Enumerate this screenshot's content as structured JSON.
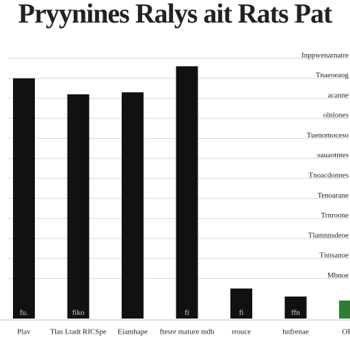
{
  "chart_data": {
    "type": "bar",
    "title": "Pryynines Ralys ait Rats Pat",
    "categories": [
      "Plav",
      "Tlas Ltadt RICSpe",
      "Eiamhape",
      "ftesre mature mdb",
      "rrouce",
      "hnfrenae",
      "ORD"
    ],
    "values": [
      12.0,
      11.2,
      11.3,
      12.6,
      1.5,
      1.1,
      0.9
    ],
    "colors": [
      "#111111",
      "#111111",
      "#111111",
      "#111111",
      "#111111",
      "#111111",
      "#2e7d32"
    ],
    "bar_labels": [
      "fu.",
      "fiko",
      "",
      "fi",
      "fi",
      "ffn",
      ""
    ],
    "ylim": [
      0,
      14
    ],
    "yticks": [
      {
        "value": 13,
        "label": "Inppwenarnatre"
      },
      {
        "value": 12,
        "label": "Tnaeoeaog"
      },
      {
        "value": 11,
        "label": "acanne"
      },
      {
        "value": 10,
        "label": "olnlones"
      },
      {
        "value": 9,
        "label": "Tuenomoceso"
      },
      {
        "value": 8,
        "label": "sauaotntes"
      },
      {
        "value": 7,
        "label": "Tnoacdonnes"
      },
      {
        "value": 6,
        "label": "Tenoarane"
      },
      {
        "value": 5,
        "label": "Trnroone"
      },
      {
        "value": 4,
        "label": "Tlamnnsdeoe"
      },
      {
        "value": 3,
        "label": "Tnnsanoe"
      },
      {
        "value": 2,
        "label": "Mbnoe"
      }
    ],
    "grid": true
  }
}
